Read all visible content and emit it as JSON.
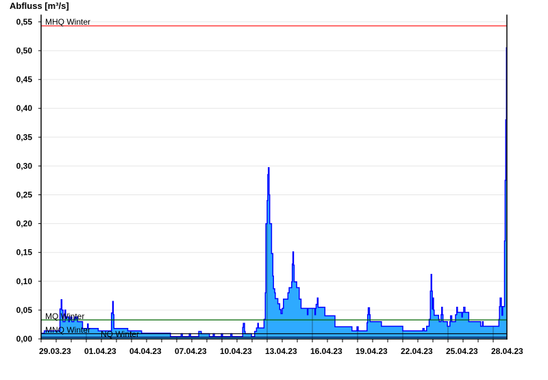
{
  "chart_data": {
    "type": "area",
    "title": "",
    "ylabel": "Abfluss [m³/s]",
    "xlabel": "",
    "ylim": [
      0,
      0.5625
    ],
    "xlim": [
      "2023-03-29T00:00",
      "2023-04-28T22:00"
    ],
    "grid": "horizontal",
    "yticks": [
      {
        "value": 0.0,
        "label": "0,00"
      },
      {
        "value": 0.05,
        "label": "0,05"
      },
      {
        "value": 0.1,
        "label": "0,10"
      },
      {
        "value": 0.15,
        "label": "0,15"
      },
      {
        "value": 0.2,
        "label": "0,20"
      },
      {
        "value": 0.25,
        "label": "0,25"
      },
      {
        "value": 0.3,
        "label": "0,30"
      },
      {
        "value": 0.35,
        "label": "0,35"
      },
      {
        "value": 0.4,
        "label": "0,40"
      },
      {
        "value": 0.45,
        "label": "0,45"
      },
      {
        "value": 0.5,
        "label": "0,50"
      },
      {
        "value": 0.55,
        "label": "0,55"
      }
    ],
    "xticks": [
      {
        "date": "2023-03-29T00:00",
        "label": "29.03.23"
      },
      {
        "date": "2023-04-01T00:00",
        "label": "01.04.23"
      },
      {
        "date": "2023-04-04T00:00",
        "label": "04.04.23"
      },
      {
        "date": "2023-04-07T00:00",
        "label": "07.04.23"
      },
      {
        "date": "2023-04-10T00:00",
        "label": "10.04.23"
      },
      {
        "date": "2023-04-13T00:00",
        "label": "13.04.23"
      },
      {
        "date": "2023-04-16T00:00",
        "label": "16.04.23"
      },
      {
        "date": "2023-04-19T00:00",
        "label": "19.04.23"
      },
      {
        "date": "2023-04-22T00:00",
        "label": "22.04.23"
      },
      {
        "date": "2023-04-25T00:00",
        "label": "25.04.23"
      },
      {
        "date": "2023-04-28T00:00",
        "label": "28.04.23"
      }
    ],
    "reference_lines": [
      {
        "label": "MHQ Winter",
        "value": 0.543,
        "color": "#ff0000"
      },
      {
        "label": "MQ Winter",
        "value": 0.033,
        "color": "#006400"
      },
      {
        "label": "MNQ Winter",
        "value": 0.009,
        "color": "#000000"
      },
      {
        "label": "NQ Winter",
        "value": 0.003,
        "color": "#000033"
      }
    ],
    "colors": {
      "fill": "#2eaaff",
      "line": "#0000ff"
    },
    "series": [
      {
        "points": [
          [
            "2023-03-29T00:00",
            0.01
          ],
          [
            "2023-03-29T05:00",
            0.014
          ],
          [
            "2023-03-30T06:00",
            0.052
          ],
          [
            "2023-03-30T08:00",
            0.068
          ],
          [
            "2023-03-30T09:00",
            0.05
          ],
          [
            "2023-03-30T11:00",
            0.03
          ],
          [
            "2023-03-30T14:00",
            0.05
          ],
          [
            "2023-03-30T15:00",
            0.038
          ],
          [
            "2023-03-30T20:00",
            0.03
          ],
          [
            "2023-03-30T21:00",
            0.034
          ],
          [
            "2023-03-30T23:00",
            0.038
          ],
          [
            "2023-03-31T01:00",
            0.03
          ],
          [
            "2023-03-31T04:00",
            0.034
          ],
          [
            "2023-03-31T06:00",
            0.038
          ],
          [
            "2023-03-31T10:00",
            0.03
          ],
          [
            "2023-03-31T18:00",
            0.018
          ],
          [
            "2023-04-01T02:00",
            0.026
          ],
          [
            "2023-04-01T03:00",
            0.018
          ],
          [
            "2023-04-01T19:00",
            0.014
          ],
          [
            "2023-04-02T16:00",
            0.045
          ],
          [
            "2023-04-02T18:00",
            0.065
          ],
          [
            "2023-04-02T19:00",
            0.042
          ],
          [
            "2023-04-02T20:00",
            0.018
          ],
          [
            "2023-04-03T18:00",
            0.014
          ],
          [
            "2023-04-04T16:00",
            0.01
          ],
          [
            "2023-04-06T14:00",
            0.004
          ],
          [
            "2023-04-07T07:00",
            0.009
          ],
          [
            "2023-04-07T09:00",
            0.004
          ],
          [
            "2023-04-07T20:00",
            0.009
          ],
          [
            "2023-04-07T22:00",
            0.004
          ],
          [
            "2023-04-08T11:00",
            0.013
          ],
          [
            "2023-04-08T15:00",
            0.009
          ],
          [
            "2023-04-09T04:00",
            0.004
          ],
          [
            "2023-04-09T10:00",
            0.009
          ],
          [
            "2023-04-09T12:00",
            0.004
          ],
          [
            "2023-04-09T23:00",
            0.009
          ],
          [
            "2023-04-10T01:00",
            0.004
          ],
          [
            "2023-04-10T14:00",
            0.009
          ],
          [
            "2023-04-10T16:00",
            0.004
          ],
          [
            "2023-04-11T09:00",
            0.02
          ],
          [
            "2023-04-11T10:00",
            0.027
          ],
          [
            "2023-04-11T12:00",
            0.013
          ],
          [
            "2023-04-11T13:00",
            0.009
          ],
          [
            "2023-04-11T23:00",
            0.004
          ],
          [
            "2023-04-12T04:00",
            0.013
          ],
          [
            "2023-04-12T07:00",
            0.019
          ],
          [
            "2023-04-12T09:00",
            0.027
          ],
          [
            "2023-04-12T10:00",
            0.019
          ],
          [
            "2023-04-12T19:00",
            0.034
          ],
          [
            "2023-04-12T21:00",
            0.08
          ],
          [
            "2023-04-12T22:00",
            0.2
          ],
          [
            "2023-04-13T00:00",
            0.24
          ],
          [
            "2023-04-13T01:00",
            0.285
          ],
          [
            "2023-04-13T02:00",
            0.297
          ],
          [
            "2023-04-13T03:00",
            0.25
          ],
          [
            "2023-04-13T04:00",
            0.2
          ],
          [
            "2023-04-13T07:00",
            0.148
          ],
          [
            "2023-04-13T09:00",
            0.109
          ],
          [
            "2023-04-13T10:00",
            0.087
          ],
          [
            "2023-04-13T12:00",
            0.08
          ],
          [
            "2023-04-13T13:00",
            0.07
          ],
          [
            "2023-04-13T17:00",
            0.061
          ],
          [
            "2023-04-13T20:00",
            0.051
          ],
          [
            "2023-04-13T22:00",
            0.044
          ],
          [
            "2023-04-14T00:00",
            0.053
          ],
          [
            "2023-04-14T02:00",
            0.069
          ],
          [
            "2023-04-14T09:00",
            0.08
          ],
          [
            "2023-04-14T11:00",
            0.089
          ],
          [
            "2023-04-14T15:00",
            0.099
          ],
          [
            "2023-04-14T16:00",
            0.13
          ],
          [
            "2023-04-14T17:00",
            0.151
          ],
          [
            "2023-04-14T18:00",
            0.128
          ],
          [
            "2023-04-14T19:00",
            0.099
          ],
          [
            "2023-04-14T23:00",
            0.089
          ],
          [
            "2023-04-15T03:00",
            0.069
          ],
          [
            "2023-04-15T06:00",
            0.053
          ],
          [
            "2023-04-15T16:00",
            0.042
          ],
          [
            "2023-04-15T17:00",
            0.053
          ],
          [
            "2023-04-16T04:00",
            0.042
          ],
          [
            "2023-04-16T05:00",
            0.053
          ],
          [
            "2023-04-16T06:00",
            0.06
          ],
          [
            "2023-04-16T08:00",
            0.071
          ],
          [
            "2023-04-16T09:00",
            0.055
          ],
          [
            "2023-04-16T20:00",
            0.04
          ],
          [
            "2023-04-17T12:00",
            0.021
          ],
          [
            "2023-04-18T15:00",
            0.014
          ],
          [
            "2023-04-18T23:00",
            0.021
          ],
          [
            "2023-04-19T01:00",
            0.014
          ],
          [
            "2023-04-19T15:00",
            0.028
          ],
          [
            "2023-04-19T16:00",
            0.042
          ],
          [
            "2023-04-19T17:00",
            0.054
          ],
          [
            "2023-04-19T19:00",
            0.042
          ],
          [
            "2023-04-19T20:00",
            0.03
          ],
          [
            "2023-04-20T14:00",
            0.022
          ],
          [
            "2023-04-22T00:00",
            0.014
          ],
          [
            "2023-04-23T08:00",
            0.018
          ],
          [
            "2023-04-23T10:00",
            0.014
          ],
          [
            "2023-04-23T14:00",
            0.022
          ],
          [
            "2023-04-23T18:00",
            0.034
          ],
          [
            "2023-04-23T20:00",
            0.083
          ],
          [
            "2023-04-23T21:00",
            0.112
          ],
          [
            "2023-04-23T22:00",
            0.083
          ],
          [
            "2023-04-23T23:00",
            0.052
          ],
          [
            "2023-04-24T00:00",
            0.071
          ],
          [
            "2023-04-24T01:00",
            0.05
          ],
          [
            "2023-04-24T02:00",
            0.041
          ],
          [
            "2023-04-24T09:00",
            0.034
          ],
          [
            "2023-04-24T10:00",
            0.03
          ],
          [
            "2023-04-24T13:00",
            0.042
          ],
          [
            "2023-04-24T14:00",
            0.055
          ],
          [
            "2023-04-24T15:00",
            0.042
          ],
          [
            "2023-04-24T16:00",
            0.03
          ],
          [
            "2023-04-24T23:00",
            0.022
          ],
          [
            "2023-04-25T03:00",
            0.03
          ],
          [
            "2023-04-25T04:00",
            0.04
          ],
          [
            "2023-04-25T06:00",
            0.03
          ],
          [
            "2023-04-25T12:00",
            0.042
          ],
          [
            "2023-04-25T14:00",
            0.055
          ],
          [
            "2023-04-25T15:00",
            0.046
          ],
          [
            "2023-04-25T22:00",
            0.038
          ],
          [
            "2023-04-25T23:00",
            0.046
          ],
          [
            "2023-04-26T01:00",
            0.055
          ],
          [
            "2023-04-26T03:00",
            0.046
          ],
          [
            "2023-04-26T09:00",
            0.03
          ],
          [
            "2023-04-27T04:00",
            0.022
          ],
          [
            "2023-04-27T07:00",
            0.03
          ],
          [
            "2023-04-27T08:00",
            0.022
          ],
          [
            "2023-04-28T09:00",
            0.034
          ],
          [
            "2023-04-28T10:00",
            0.056
          ],
          [
            "2023-04-28T11:00",
            0.071
          ],
          [
            "2023-04-28T13:00",
            0.056
          ],
          [
            "2023-04-28T14:00",
            0.041
          ],
          [
            "2023-04-28T15:00",
            0.056
          ],
          [
            "2023-04-28T18:00",
            0.17
          ],
          [
            "2023-04-28T19:00",
            0.275
          ],
          [
            "2023-04-28T20:00",
            0.38
          ],
          [
            "2023-04-28T21:00",
            0.505
          ]
        ]
      }
    ]
  }
}
